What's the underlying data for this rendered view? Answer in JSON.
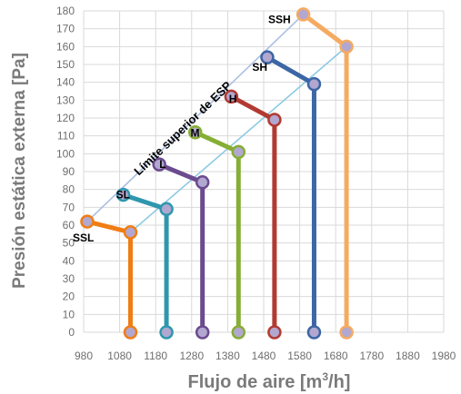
{
  "chart_data": {
    "type": "line",
    "xlabel_parts": [
      "Flujo de aire [m",
      "3",
      "/h]"
    ],
    "ylabel": "Presión estática externa [Pa]",
    "xlim": [
      980,
      1980
    ],
    "ylim": [
      0,
      180
    ],
    "xticks": [
      980,
      1080,
      1180,
      1280,
      1380,
      1480,
      1580,
      1680,
      1780,
      1880,
      1980
    ],
    "yticks": [
      0,
      10,
      20,
      30,
      40,
      50,
      60,
      70,
      80,
      90,
      100,
      110,
      120,
      130,
      140,
      150,
      160,
      170,
      180
    ],
    "grid": true,
    "series": [
      {
        "name": "SSL",
        "color": "#F07D14",
        "points": [
          [
            990,
            62
          ],
          [
            1110,
            56
          ],
          [
            1110,
            0
          ]
        ]
      },
      {
        "name": "SL",
        "color": "#2E97AE",
        "points": [
          [
            1090,
            77
          ],
          [
            1210,
            69
          ],
          [
            1210,
            0
          ]
        ]
      },
      {
        "name": "L",
        "color": "#6B4B8F",
        "points": [
          [
            1190,
            94
          ],
          [
            1310,
            84
          ],
          [
            1310,
            0
          ]
        ]
      },
      {
        "name": "M",
        "color": "#86AE34",
        "points": [
          [
            1290,
            112
          ],
          [
            1410,
            101
          ],
          [
            1410,
            0
          ]
        ]
      },
      {
        "name": "H",
        "color": "#B23A33",
        "points": [
          [
            1390,
            132
          ],
          [
            1510,
            119
          ],
          [
            1510,
            0
          ]
        ]
      },
      {
        "name": "SH",
        "color": "#3C66A5",
        "points": [
          [
            1490,
            154
          ],
          [
            1620,
            139
          ],
          [
            1620,
            0
          ]
        ]
      },
      {
        "name": "SSH",
        "color": "#F5AA62",
        "points": [
          [
            1590,
            178
          ],
          [
            1710,
            160
          ],
          [
            1710,
            0
          ]
        ]
      }
    ],
    "upper_boundary": {
      "label": "Límite superior de ESP",
      "color": "#A9BEE3",
      "x": [
        990,
        1590
      ],
      "y": [
        62,
        178
      ]
    },
    "lower_boundary": {
      "color": "#8DCAE2",
      "x": [
        1110,
        1710
      ],
      "y": [
        56,
        160
      ]
    }
  }
}
